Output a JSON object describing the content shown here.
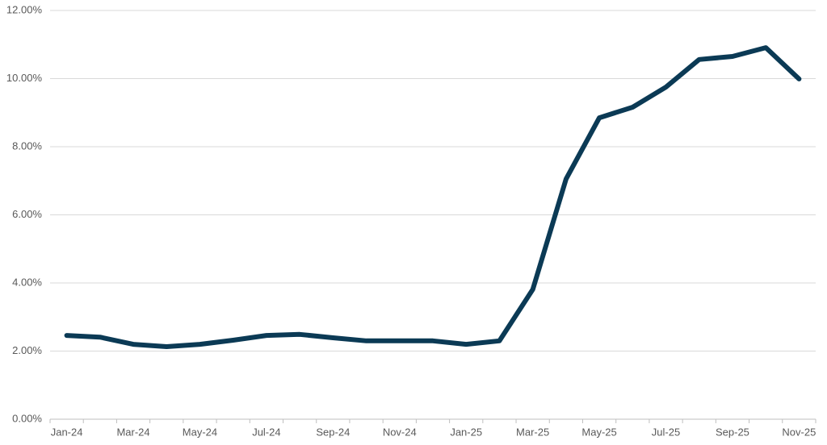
{
  "chart_data": {
    "type": "line",
    "categories": [
      "Jan-24",
      null,
      "Mar-24",
      null,
      "May-24",
      null,
      "Jul-24",
      null,
      "Sep-24",
      null,
      "Nov-24",
      null,
      "Jan-25",
      null,
      "Mar-25",
      null,
      "May-25",
      null,
      "Jul-25",
      null,
      "Sep-25",
      null,
      "Nov-25"
    ],
    "series": [
      {
        "color": "#0b3a55",
        "values": [
          2.46,
          2.41,
          2.2,
          2.13,
          2.2,
          2.32,
          2.46,
          2.49,
          2.39,
          2.3,
          2.3,
          2.3,
          2.2,
          2.3,
          3.81,
          7.05,
          8.85,
          9.16,
          9.75,
          10.56,
          10.65,
          10.91,
          9.99
        ]
      }
    ],
    "ylim": [
      0,
      12
    ],
    "yticks": [
      {
        "value": 0,
        "label": "0.00%"
      },
      {
        "value": 2,
        "label": "2.00%"
      },
      {
        "value": 4,
        "label": "4.00%"
      },
      {
        "value": 6,
        "label": "6.00%"
      },
      {
        "value": 8,
        "label": "8.00%"
      },
      {
        "value": 10,
        "label": "10.00%"
      },
      {
        "value": 12,
        "label": "12.00%"
      }
    ],
    "grid": true
  }
}
